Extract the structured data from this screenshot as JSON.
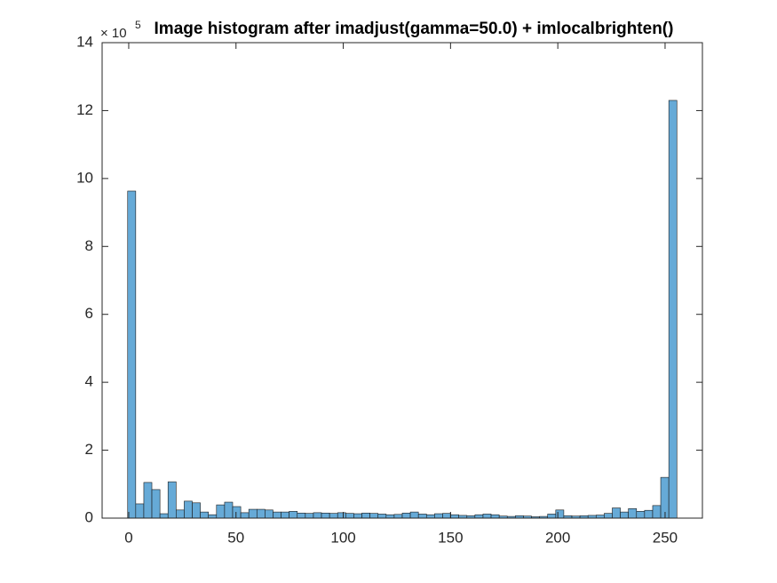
{
  "chart_data": {
    "type": "histogram",
    "title": "Image histogram after imadjust(gamma=50.0) + imlocalbrighten()",
    "y_exponent": {
      "base": "× 10",
      "power": "5"
    },
    "bins": [
      -0.5,
      3.26,
      7.03,
      10.79,
      14.56,
      18.32,
      22.09,
      25.85,
      29.62,
      33.38,
      37.15,
      40.91,
      44.68,
      48.44,
      52.21,
      55.97,
      59.74,
      63.5,
      67.26,
      71.03,
      74.79,
      78.56,
      82.32,
      86.09,
      89.85,
      93.62,
      97.38,
      101.15,
      104.91,
      108.68,
      112.44,
      116.21,
      119.97,
      123.74,
      127.5,
      131.26,
      135.03,
      138.79,
      142.56,
      146.32,
      150.09,
      153.85,
      157.62,
      161.38,
      165.15,
      168.91,
      172.68,
      176.44,
      180.21,
      183.97,
      187.74,
      191.5,
      195.26,
      199.03,
      202.79,
      206.56,
      210.32,
      214.09,
      217.85,
      221.62,
      225.38,
      229.15,
      232.91,
      236.68,
      240.44,
      244.21,
      247.97,
      251.74,
      255.5
    ],
    "values": [
      9.63,
      0.42,
      1.05,
      0.84,
      0.13,
      1.07,
      0.24,
      0.5,
      0.45,
      0.18,
      0.1,
      0.39,
      0.47,
      0.34,
      0.16,
      0.26,
      0.26,
      0.24,
      0.18,
      0.18,
      0.2,
      0.15,
      0.14,
      0.16,
      0.15,
      0.14,
      0.16,
      0.14,
      0.13,
      0.15,
      0.14,
      0.12,
      0.1,
      0.11,
      0.15,
      0.18,
      0.12,
      0.1,
      0.13,
      0.14,
      0.1,
      0.08,
      0.07,
      0.1,
      0.12,
      0.1,
      0.06,
      0.05,
      0.07,
      0.06,
      0.04,
      0.05,
      0.12,
      0.24,
      0.07,
      0.06,
      0.07,
      0.08,
      0.09,
      0.14,
      0.3,
      0.18,
      0.28,
      0.2,
      0.23,
      0.37,
      1.2,
      12.3
    ],
    "color": "#66aad7",
    "xlim": [
      -12.4,
      267.4
    ],
    "xticks": [
      0,
      50,
      100,
      150,
      200,
      250
    ],
    "ylim": [
      0,
      14
    ],
    "yticks": [
      0,
      2,
      4,
      6,
      8,
      10,
      12,
      14
    ]
  }
}
